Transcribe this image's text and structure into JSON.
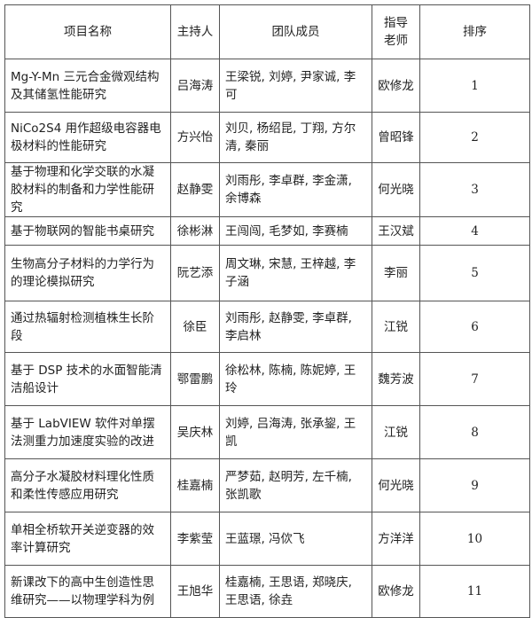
{
  "headers": {
    "project": "项目名称",
    "host": "主持人",
    "members": "团队成员",
    "advisor": "指导老师",
    "rank": "排序"
  },
  "rows": [
    {
      "project": "Mg-Y-Mn 三元合金微观结构及其储氢性能研究",
      "host": "吕海涛",
      "members": "王梁锐, 刘婷, 尹家诚, 李可",
      "advisor": "欧修龙",
      "rank": "1"
    },
    {
      "project": "NiCo2S4 用作超级电容器电极材料的性能研究",
      "host": "方兴怡",
      "members": "刘贝, 杨绍昆, 丁翔, 方尔清, 秦丽",
      "advisor": "曾昭锋",
      "rank": "2"
    },
    {
      "project": "基于物理和化学交联的水凝胶材料的制备和力学性能研究",
      "host": "赵静雯",
      "members": "刘雨彤, 李卓群, 李金潇, 余博森",
      "advisor": "何光晓",
      "rank": "3"
    },
    {
      "project": "基于物联网的智能书桌研究",
      "host": "徐彬淋",
      "members": "王闯闯, 毛梦如, 李赛楠",
      "advisor": "王汉斌",
      "rank": "4"
    },
    {
      "project": "生物高分子材料的力学行为的理论模拟研究",
      "host": "阮艺添",
      "members": "周文琳, 宋慧, 王梓越, 李子涵",
      "advisor": "李丽",
      "rank": "5"
    },
    {
      "project": "通过热辐射检测植株生长阶段",
      "host": "徐臣",
      "members": "刘雨彤, 赵静雯, 李卓群, 李启林",
      "advisor": "江锐",
      "rank": "6"
    },
    {
      "project": "基于 DSP 技术的水面智能清洁船设计",
      "host": "鄂雷鹏",
      "members": "徐松林, 陈楠, 陈妮婷, 王玲",
      "advisor": "魏芳波",
      "rank": "7"
    },
    {
      "project": "基于 LabVIEW 软件对单摆法测重力加速度实验的改进",
      "host": "吴庆林",
      "members": "刘婷, 吕海涛, 张承鋆, 王凯",
      "advisor": "江锐",
      "rank": "8"
    },
    {
      "project": "高分子水凝胶材料理化性质和柔性传感应用研究",
      "host": "桂嘉楠",
      "members": "严梦茹, 赵明芳, 左千楠, 张凯歌",
      "advisor": "何光晓",
      "rank": "9"
    },
    {
      "project": "单相全桥软开关逆变器的效率计算研究",
      "host": "李紫莹",
      "members": "王蓝璟, 冯佽飞",
      "advisor": "方洋洋",
      "rank": "10"
    },
    {
      "project": "新课改下的高中生创造性思维研究——以物理学科为例",
      "host": "王旭华",
      "members": "桂嘉楠, 王思语, 郑晓庆, 王思语, 徐垚",
      "advisor": "欧修龙",
      "rank": "11"
    }
  ]
}
